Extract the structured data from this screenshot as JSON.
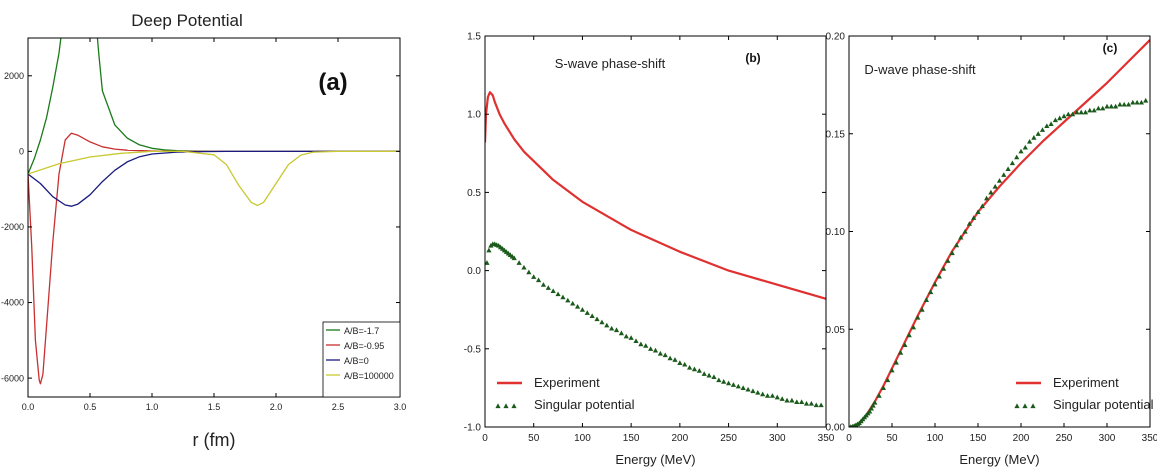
{
  "chart_data": [
    {
      "id": "a",
      "type": "line",
      "title": "Deep Potential",
      "panel_label": "(a)",
      "xlabel": "r  (fm)",
      "ylabel": "",
      "xlim": [
        0,
        3.0
      ],
      "ylim": [
        -6500,
        3000
      ],
      "xticks": [
        0.0,
        0.5,
        1.0,
        1.5,
        2.0,
        2.5,
        3.0
      ],
      "xtick_labels": [
        "0.0",
        "0.5",
        "1.0",
        "1.5",
        "2.0",
        "2.5",
        "3.0"
      ],
      "yticks": [
        2000,
        0,
        -2000,
        -4000,
        -6000
      ],
      "ytick_labels": [
        "2000",
        "0",
        "-2000",
        "-4000",
        "-6000"
      ],
      "grid": false,
      "legend_position": "bottom-right",
      "series": [
        {
          "name": "A/B=-1.7",
          "color": "#1a7a1a",
          "x": [
            0.0,
            0.05,
            0.1,
            0.15,
            0.2,
            0.25,
            0.28,
            0.55,
            0.57,
            0.6,
            0.7,
            0.8,
            0.9,
            1.0,
            1.1,
            1.2,
            1.3,
            1.5,
            2.0,
            2.5,
            3.0
          ],
          "y": [
            -600,
            -200,
            300,
            900,
            1700,
            2600,
            3400,
            3400,
            2600,
            1600,
            700,
            350,
            170,
            80,
            40,
            20,
            10,
            0,
            0,
            0,
            0
          ]
        },
        {
          "name": "A/B=-0.95",
          "color": "#c83030",
          "x": [
            0.0,
            0.03,
            0.06,
            0.09,
            0.1,
            0.12,
            0.15,
            0.2,
            0.25,
            0.3,
            0.35,
            0.4,
            0.5,
            0.6,
            0.7,
            0.8,
            1.0,
            1.2,
            1.5,
            2.0,
            3.0
          ],
          "y": [
            -600,
            -2500,
            -5000,
            -6050,
            -6150,
            -5900,
            -4600,
            -2400,
            -600,
            300,
            480,
            430,
            250,
            120,
            60,
            30,
            10,
            0,
            0,
            0,
            0
          ]
        },
        {
          "name": "A/B=0",
          "color": "#1a1a80",
          "x": [
            0.0,
            0.1,
            0.2,
            0.3,
            0.35,
            0.4,
            0.5,
            0.6,
            0.7,
            0.8,
            0.9,
            1.0,
            1.2,
            1.4,
            1.6,
            2.0,
            2.5,
            3.0
          ],
          "y": [
            -600,
            -850,
            -1200,
            -1420,
            -1450,
            -1400,
            -1150,
            -800,
            -500,
            -280,
            -140,
            -70,
            -20,
            -5,
            0,
            0,
            0,
            0
          ]
        },
        {
          "name": "A/B=100000",
          "color": "#c8c830",
          "x": [
            0.0,
            0.25,
            0.5,
            0.75,
            1.0,
            1.25,
            1.5,
            1.6,
            1.7,
            1.8,
            1.85,
            1.9,
            2.0,
            2.1,
            2.2,
            2.3,
            2.5,
            3.0
          ],
          "y": [
            -600,
            -330,
            -150,
            -50,
            0,
            0,
            -90,
            -350,
            -900,
            -1350,
            -1430,
            -1350,
            -850,
            -350,
            -100,
            -20,
            0,
            0
          ]
        }
      ]
    },
    {
      "id": "b",
      "type": "line",
      "title": "S-wave phase-shift",
      "panel_label": "(b)",
      "xlabel": "Energy (MeV)",
      "ylabel": "",
      "xlim": [
        0,
        350
      ],
      "ylim": [
        -1.0,
        1.5
      ],
      "xticks": [
        0,
        50,
        100,
        150,
        200,
        250,
        300,
        350
      ],
      "xtick_labels": [
        "0",
        "50",
        "100",
        "150",
        "200",
        "250",
        "300",
        "350"
      ],
      "yticks": [
        1.5,
        1.0,
        0.5,
        0.0,
        -0.5,
        -1.0
      ],
      "ytick_labels": [
        "1.5",
        "1.0",
        "0.5",
        "0.0",
        "-0.5",
        "-1.0"
      ],
      "grid": false,
      "legend_position": "bottom-left",
      "series": [
        {
          "name": "Experiment",
          "style": "line",
          "color": "#e03030",
          "x": [
            0,
            1,
            3,
            5,
            8,
            10,
            15,
            20,
            30,
            40,
            50,
            70,
            100,
            150,
            200,
            250,
            300,
            350
          ],
          "y": [
            0.82,
            1.0,
            1.11,
            1.14,
            1.12,
            1.08,
            1.0,
            0.94,
            0.84,
            0.76,
            0.7,
            0.58,
            0.44,
            0.26,
            0.12,
            0.0,
            -0.09,
            -0.18
          ]
        },
        {
          "name": "Singular potential",
          "style": "markers",
          "color": "#1a5a1a",
          "x": [
            2,
            4,
            6,
            8,
            10,
            12,
            14,
            16,
            18,
            20,
            22,
            24,
            26,
            28,
            30,
            35,
            40,
            45,
            50,
            55,
            60,
            65,
            70,
            75,
            80,
            85,
            90,
            95,
            100,
            105,
            110,
            115,
            120,
            125,
            130,
            135,
            140,
            145,
            150,
            155,
            160,
            165,
            170,
            175,
            180,
            185,
            190,
            195,
            200,
            205,
            210,
            215,
            220,
            225,
            230,
            235,
            240,
            245,
            250,
            255,
            260,
            265,
            270,
            275,
            280,
            285,
            290,
            295,
            300,
            305,
            310,
            315,
            320,
            325,
            330,
            335,
            340,
            345
          ],
          "y": [
            0.05,
            0.13,
            0.16,
            0.17,
            0.17,
            0.165,
            0.16,
            0.15,
            0.14,
            0.13,
            0.12,
            0.11,
            0.1,
            0.09,
            0.08,
            0.05,
            0.02,
            -0.01,
            -0.04,
            -0.06,
            -0.09,
            -0.11,
            -0.13,
            -0.15,
            -0.17,
            -0.19,
            -0.21,
            -0.23,
            -0.25,
            -0.27,
            -0.29,
            -0.31,
            -0.33,
            -0.35,
            -0.37,
            -0.38,
            -0.4,
            -0.42,
            -0.43,
            -0.45,
            -0.47,
            -0.48,
            -0.5,
            -0.51,
            -0.53,
            -0.54,
            -0.56,
            -0.57,
            -0.59,
            -0.6,
            -0.62,
            -0.63,
            -0.64,
            -0.66,
            -0.67,
            -0.68,
            -0.7,
            -0.71,
            -0.72,
            -0.73,
            -0.74,
            -0.75,
            -0.76,
            -0.77,
            -0.78,
            -0.79,
            -0.8,
            -0.8,
            -0.81,
            -0.82,
            -0.83,
            -0.83,
            -0.84,
            -0.84,
            -0.85,
            -0.85,
            -0.86,
            -0.86
          ]
        }
      ]
    },
    {
      "id": "c",
      "type": "line",
      "title": "D-wave phase-shift",
      "panel_label": "(c)",
      "xlabel": "Energy (MeV)",
      "ylabel": "",
      "xlim": [
        0,
        350
      ],
      "ylim": [
        0.0,
        0.2
      ],
      "xticks": [
        0,
        50,
        100,
        150,
        200,
        250,
        300,
        350
      ],
      "xtick_labels": [
        "0",
        "50",
        "100",
        "150",
        "200",
        "250",
        "300",
        "350"
      ],
      "yticks": [
        0.2,
        0.15,
        0.1,
        0.05,
        0.0
      ],
      "ytick_labels": [
        "0.20",
        "0.15",
        "0.10",
        "0.05",
        "0.00"
      ],
      "grid": false,
      "legend_position": "bottom-right",
      "series": [
        {
          "name": "Experiment",
          "style": "line",
          "color": "#e03030",
          "x": [
            0,
            5,
            10,
            15,
            20,
            30,
            40,
            50,
            60,
            80,
            100,
            120,
            150,
            175,
            200,
            225,
            250,
            275,
            300,
            325,
            350
          ],
          "y": [
            0.0,
            0.0005,
            0.0015,
            0.003,
            0.006,
            0.013,
            0.021,
            0.03,
            0.039,
            0.057,
            0.074,
            0.09,
            0.11,
            0.123,
            0.135,
            0.146,
            0.156,
            0.166,
            0.176,
            0.187,
            0.198
          ]
        },
        {
          "name": "Singular potential",
          "style": "markers",
          "color": "#1a5a1a",
          "x": [
            2,
            4,
            6,
            8,
            10,
            12,
            14,
            16,
            18,
            20,
            22,
            24,
            26,
            28,
            30,
            35,
            40,
            45,
            50,
            55,
            60,
            65,
            70,
            75,
            80,
            85,
            90,
            95,
            100,
            105,
            110,
            115,
            120,
            125,
            130,
            135,
            140,
            145,
            150,
            155,
            160,
            165,
            170,
            175,
            180,
            185,
            190,
            195,
            200,
            205,
            210,
            215,
            220,
            225,
            230,
            235,
            240,
            245,
            250,
            255,
            260,
            265,
            270,
            275,
            280,
            285,
            290,
            295,
            300,
            305,
            310,
            315,
            320,
            325,
            330,
            335,
            340,
            345
          ],
          "y": [
            0.0001,
            0.0003,
            0.0006,
            0.001,
            0.0015,
            0.002,
            0.003,
            0.004,
            0.005,
            0.006,
            0.007,
            0.008,
            0.0095,
            0.011,
            0.0125,
            0.016,
            0.02,
            0.024,
            0.029,
            0.033,
            0.038,
            0.042,
            0.047,
            0.051,
            0.056,
            0.06,
            0.065,
            0.069,
            0.073,
            0.077,
            0.081,
            0.085,
            0.089,
            0.093,
            0.097,
            0.1,
            0.104,
            0.107,
            0.11,
            0.113,
            0.117,
            0.12,
            0.123,
            0.126,
            0.129,
            0.132,
            0.135,
            0.138,
            0.141,
            0.143,
            0.146,
            0.148,
            0.15,
            0.152,
            0.154,
            0.155,
            0.157,
            0.158,
            0.159,
            0.16,
            0.16,
            0.161,
            0.161,
            0.161,
            0.162,
            0.162,
            0.163,
            0.163,
            0.164,
            0.164,
            0.164,
            0.165,
            0.165,
            0.165,
            0.166,
            0.166,
            0.166,
            0.167
          ]
        }
      ]
    }
  ]
}
